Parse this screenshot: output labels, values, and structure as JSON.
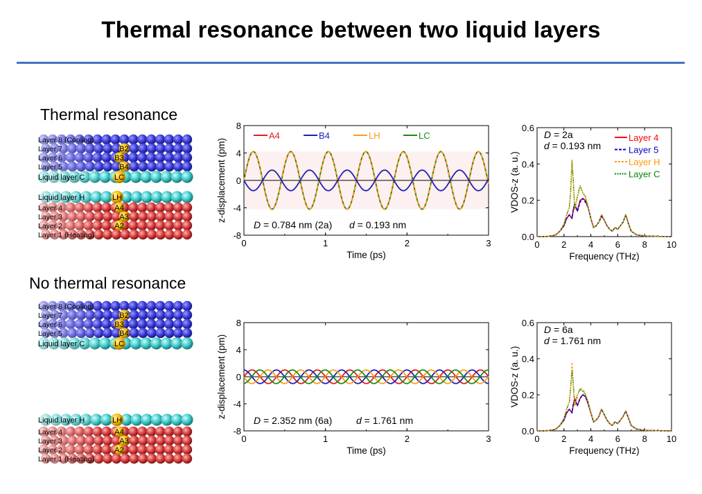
{
  "slide": {
    "title": "Thermal resonance between two liquid layers",
    "sections": [
      "Thermal resonance",
      "No thermal resonance"
    ]
  },
  "schematics": [
    {
      "labels": [
        "Layer 8 (Cooling)",
        "Layer 7",
        "Layer 6",
        "Layer 5",
        "Liquid layer C",
        "Liquid layer H",
        "Layer 4",
        "Layer 3",
        "Layer 2",
        "Layer 1 (Heating)"
      ],
      "atoms": [
        "B2",
        "B3",
        "B4",
        "LC",
        "LH",
        "A4",
        "A3",
        "A2"
      ]
    },
    {
      "labels": [
        "Layer 8 (Cooling)",
        "Layer 7",
        "Layer 6",
        "Layer 5",
        "Liquid layer C",
        "Liquid layer H",
        "Layer 4",
        "Layer 3",
        "Layer 2",
        "Layer 1 (Heating)"
      ],
      "atoms": [
        "B2",
        "B3",
        "B4",
        "LC",
        "LH",
        "A4",
        "A3",
        "A2"
      ]
    }
  ],
  "colors": {
    "A4": "#e41a1c",
    "B4": "#1f1fb4",
    "LH": "#ff9a1a",
    "LC": "#1a8a1a",
    "layer4": "#ff0000",
    "layer5": "#0000cc",
    "layerH": "#ff9900",
    "layerC": "#008800",
    "blueAtom": "#3a3ad6",
    "cyanAtom": "#3ec6c6",
    "redAtom": "#d63a3a",
    "goldAtom": "#f5b800",
    "rule": "#4472C4"
  },
  "chart_data": [
    {
      "type": "line",
      "xlabel": "Time (ps)",
      "ylabel": "z-displacement (pm)",
      "xlim": [
        0,
        3
      ],
      "ylim": [
        -8,
        8
      ],
      "xticks": [
        0,
        1,
        2,
        3
      ],
      "yticks": [
        -8,
        -4,
        0,
        4,
        8
      ],
      "legend": {
        "placement": "top",
        "entries": [
          "A4",
          "B4",
          "LH",
          "LC"
        ]
      },
      "annotation": {
        "D": "0.784 nm (2a)",
        "d": "0.193 nm"
      },
      "series": [
        {
          "name": "A4",
          "color": "#e41a1c",
          "amplitude": 4.2,
          "period": 0.46,
          "phase": 0
        },
        {
          "name": "B4",
          "color": "#1f1fb4",
          "amplitude": 1.5,
          "period": 0.46,
          "phase": 3.14
        },
        {
          "name": "LH",
          "color": "#ff9a1a",
          "amplitude": 4.2,
          "period": 0.46,
          "phase": 0
        },
        {
          "name": "LC",
          "color": "#1a8a1a",
          "amplitude": 4.2,
          "period": 0.46,
          "phase": 0
        }
      ],
      "shaded_band": [
        -4.2,
        4.2
      ]
    },
    {
      "type": "line",
      "xlabel": "Frequency (THz)",
      "ylabel": "VDOS-z (a. u.)",
      "xlim": [
        0,
        10
      ],
      "ylim": [
        0,
        0.6
      ],
      "xticks": [
        0,
        2,
        4,
        6,
        8,
        10
      ],
      "yticks": [
        0.0,
        0.2,
        0.4,
        0.6
      ],
      "legend": {
        "placement": "top-right",
        "entries": [
          "Layer 4",
          "Layer 5",
          "Layer H",
          "Layer C"
        ]
      },
      "annotation": {
        "D": "2a",
        "d": "0.193 nm"
      },
      "series": [
        {
          "name": "Layer 4",
          "color": "#ff0000",
          "x": [
            0,
            0.5,
            1.0,
            1.4,
            1.7,
            2.0,
            2.2,
            2.4,
            2.6,
            2.7,
            2.8,
            3.0,
            3.2,
            3.4,
            3.6,
            3.8,
            4.0,
            4.2,
            4.4,
            4.6,
            4.8,
            5.0,
            5.2,
            5.4,
            5.6,
            5.8,
            6.0,
            6.2,
            6.4,
            6.6,
            6.8,
            7.0,
            7.4,
            8.0,
            9.0,
            10
          ],
          "y": [
            0,
            0,
            0.002,
            0.01,
            0.03,
            0.06,
            0.1,
            0.12,
            0.1,
            0.15,
            0.18,
            0.14,
            0.2,
            0.21,
            0.2,
            0.16,
            0.1,
            0.05,
            0.06,
            0.08,
            0.12,
            0.09,
            0.06,
            0.04,
            0.03,
            0.05,
            0.04,
            0.06,
            0.08,
            0.12,
            0.07,
            0.03,
            0.01,
            0.003,
            0.001,
            0
          ]
        },
        {
          "name": "Layer 5",
          "color": "#0000cc",
          "x": [
            0,
            0.5,
            1.0,
            1.4,
            1.7,
            2.0,
            2.2,
            2.4,
            2.6,
            2.7,
            2.8,
            3.0,
            3.2,
            3.4,
            3.6,
            3.8,
            4.0,
            4.2,
            4.4,
            4.6,
            4.8,
            5.0,
            5.2,
            5.4,
            5.6,
            5.8,
            6.0,
            6.2,
            6.4,
            6.6,
            6.8,
            7.0,
            7.4,
            8.0,
            9.0,
            10
          ],
          "y": [
            0,
            0,
            0.002,
            0.01,
            0.03,
            0.06,
            0.1,
            0.12,
            0.1,
            0.15,
            0.18,
            0.14,
            0.19,
            0.21,
            0.19,
            0.16,
            0.1,
            0.05,
            0.06,
            0.08,
            0.11,
            0.09,
            0.06,
            0.04,
            0.03,
            0.05,
            0.04,
            0.06,
            0.08,
            0.12,
            0.07,
            0.03,
            0.01,
            0.003,
            0.001,
            0
          ]
        },
        {
          "name": "Layer H",
          "color": "#ff9900",
          "x": [
            0,
            0.5,
            1.0,
            1.4,
            1.7,
            2.0,
            2.2,
            2.4,
            2.5,
            2.6,
            2.7,
            2.8,
            3.0,
            3.2,
            3.4,
            3.6,
            3.8,
            4.0,
            4.2,
            4.4,
            4.6,
            4.8,
            5.0,
            5.2,
            5.4,
            5.6,
            5.8,
            6.0,
            6.2,
            6.4,
            6.6,
            6.8,
            7.0,
            7.4,
            8.0,
            9.0,
            10
          ],
          "y": [
            0,
            0,
            0.002,
            0.01,
            0.03,
            0.07,
            0.12,
            0.16,
            0.25,
            0.42,
            0.3,
            0.15,
            0.22,
            0.28,
            0.24,
            0.22,
            0.16,
            0.1,
            0.05,
            0.06,
            0.08,
            0.12,
            0.09,
            0.06,
            0.04,
            0.03,
            0.05,
            0.04,
            0.06,
            0.08,
            0.12,
            0.07,
            0.03,
            0.01,
            0.003,
            0.001,
            0
          ]
        },
        {
          "name": "Layer C",
          "color": "#008800",
          "x": [
            0,
            0.5,
            1.0,
            1.4,
            1.7,
            2.0,
            2.2,
            2.4,
            2.5,
            2.6,
            2.7,
            2.8,
            3.0,
            3.2,
            3.4,
            3.6,
            3.8,
            4.0,
            4.2,
            4.4,
            4.6,
            4.8,
            5.0,
            5.2,
            5.4,
            5.6,
            5.8,
            6.0,
            6.2,
            6.4,
            6.6,
            6.8,
            7.0,
            7.4,
            8.0,
            9.0,
            10
          ],
          "y": [
            0,
            0,
            0.002,
            0.01,
            0.03,
            0.07,
            0.12,
            0.16,
            0.25,
            0.42,
            0.3,
            0.15,
            0.22,
            0.28,
            0.24,
            0.22,
            0.16,
            0.1,
            0.05,
            0.06,
            0.08,
            0.12,
            0.09,
            0.06,
            0.04,
            0.03,
            0.05,
            0.04,
            0.06,
            0.08,
            0.12,
            0.07,
            0.03,
            0.01,
            0.003,
            0.001,
            0
          ]
        }
      ]
    },
    {
      "type": "line",
      "xlabel": "Time (ps)",
      "ylabel": "z-displacement (pm)",
      "xlim": [
        0,
        3
      ],
      "ylim": [
        -8,
        8
      ],
      "xticks": [
        0,
        1,
        2,
        3
      ],
      "yticks": [
        -8,
        -4,
        0,
        4,
        8
      ],
      "annotation": {
        "D": "2.352 nm (6a)",
        "d": "1.761 nm"
      },
      "series": [
        {
          "name": "A4",
          "color": "#e41a1c",
          "amplitude": 1.0,
          "period": 0.4,
          "phase": 0.0
        },
        {
          "name": "B4",
          "color": "#1f1fb4",
          "amplitude": 1.0,
          "period": 0.4,
          "phase": 1.6
        },
        {
          "name": "LH",
          "color": "#ff9a1a",
          "amplitude": 1.0,
          "period": 0.4,
          "phase": 3.2
        },
        {
          "name": "LC",
          "color": "#1a8a1a",
          "amplitude": 1.0,
          "period": 0.4,
          "phase": 4.8
        }
      ]
    },
    {
      "type": "line",
      "xlabel": "Frequency (THz)",
      "ylabel": "VDOS-z (a. u.)",
      "xlim": [
        0,
        10
      ],
      "ylim": [
        0,
        0.6
      ],
      "xticks": [
        0,
        2,
        4,
        6,
        8,
        10
      ],
      "yticks": [
        0.0,
        0.2,
        0.4,
        0.6
      ],
      "annotation": {
        "D": "6a",
        "d": "1.761 nm"
      },
      "series": [
        {
          "name": "Layer 4",
          "color": "#ff0000",
          "x": [
            0,
            0.5,
            1.0,
            1.4,
            1.7,
            2.0,
            2.2,
            2.4,
            2.6,
            2.7,
            2.8,
            3.0,
            3.2,
            3.4,
            3.6,
            3.8,
            4.0,
            4.2,
            4.4,
            4.6,
            4.8,
            5.0,
            5.2,
            5.4,
            5.6,
            5.8,
            6.0,
            6.2,
            6.4,
            6.6,
            6.8,
            7.0,
            7.4,
            8.0,
            9.0,
            10
          ],
          "y": [
            0,
            0,
            0.002,
            0.01,
            0.03,
            0.06,
            0.1,
            0.12,
            0.1,
            0.15,
            0.18,
            0.14,
            0.18,
            0.2,
            0.19,
            0.15,
            0.1,
            0.05,
            0.06,
            0.08,
            0.12,
            0.09,
            0.06,
            0.04,
            0.03,
            0.05,
            0.04,
            0.06,
            0.08,
            0.11,
            0.07,
            0.03,
            0.01,
            0.003,
            0.001,
            0
          ]
        },
        {
          "name": "Layer 5",
          "color": "#0000cc",
          "x": [
            0,
            0.5,
            1.0,
            1.4,
            1.7,
            2.0,
            2.2,
            2.4,
            2.6,
            2.7,
            2.8,
            3.0,
            3.2,
            3.4,
            3.6,
            3.8,
            4.0,
            4.2,
            4.4,
            4.6,
            4.8,
            5.0,
            5.2,
            5.4,
            5.6,
            5.8,
            6.0,
            6.2,
            6.4,
            6.6,
            6.8,
            7.0,
            7.4,
            8.0,
            9.0,
            10
          ],
          "y": [
            0,
            0,
            0.002,
            0.01,
            0.03,
            0.06,
            0.1,
            0.12,
            0.1,
            0.15,
            0.17,
            0.14,
            0.18,
            0.2,
            0.19,
            0.15,
            0.1,
            0.05,
            0.06,
            0.08,
            0.12,
            0.09,
            0.06,
            0.04,
            0.03,
            0.05,
            0.04,
            0.06,
            0.08,
            0.11,
            0.07,
            0.03,
            0.01,
            0.003,
            0.001,
            0
          ]
        },
        {
          "name": "Layer H",
          "color": "#ff9900",
          "x": [
            0,
            0.5,
            1.0,
            1.4,
            1.7,
            2.0,
            2.2,
            2.4,
            2.5,
            2.6,
            2.7,
            2.8,
            3.0,
            3.2,
            3.4,
            3.6,
            3.8,
            4.0,
            4.2,
            4.4,
            4.6,
            4.8,
            5.0,
            5.2,
            5.4,
            5.6,
            5.8,
            6.0,
            6.2,
            6.4,
            6.6,
            6.8,
            7.0,
            7.4,
            8.0,
            9.0,
            10
          ],
          "y": [
            0,
            0,
            0.002,
            0.01,
            0.03,
            0.07,
            0.12,
            0.16,
            0.24,
            0.38,
            0.26,
            0.14,
            0.2,
            0.24,
            0.23,
            0.21,
            0.16,
            0.1,
            0.05,
            0.06,
            0.08,
            0.12,
            0.09,
            0.06,
            0.04,
            0.03,
            0.05,
            0.04,
            0.06,
            0.08,
            0.11,
            0.07,
            0.03,
            0.01,
            0.003,
            0.001,
            0
          ]
        },
        {
          "name": "Layer C",
          "color": "#008800",
          "x": [
            0,
            0.5,
            1.0,
            1.4,
            1.7,
            2.0,
            2.2,
            2.4,
            2.5,
            2.6,
            2.7,
            2.8,
            3.0,
            3.2,
            3.4,
            3.6,
            3.8,
            4.0,
            4.2,
            4.4,
            4.6,
            4.8,
            5.0,
            5.2,
            5.4,
            5.6,
            5.8,
            6.0,
            6.2,
            6.4,
            6.6,
            6.8,
            7.0,
            7.4,
            8.0,
            9.0,
            10
          ],
          "y": [
            0,
            0,
            0.002,
            0.01,
            0.03,
            0.07,
            0.12,
            0.16,
            0.24,
            0.34,
            0.25,
            0.14,
            0.2,
            0.23,
            0.22,
            0.2,
            0.16,
            0.1,
            0.05,
            0.06,
            0.08,
            0.12,
            0.09,
            0.06,
            0.04,
            0.03,
            0.05,
            0.04,
            0.06,
            0.08,
            0.11,
            0.07,
            0.03,
            0.01,
            0.003,
            0.001,
            0
          ]
        }
      ]
    }
  ]
}
